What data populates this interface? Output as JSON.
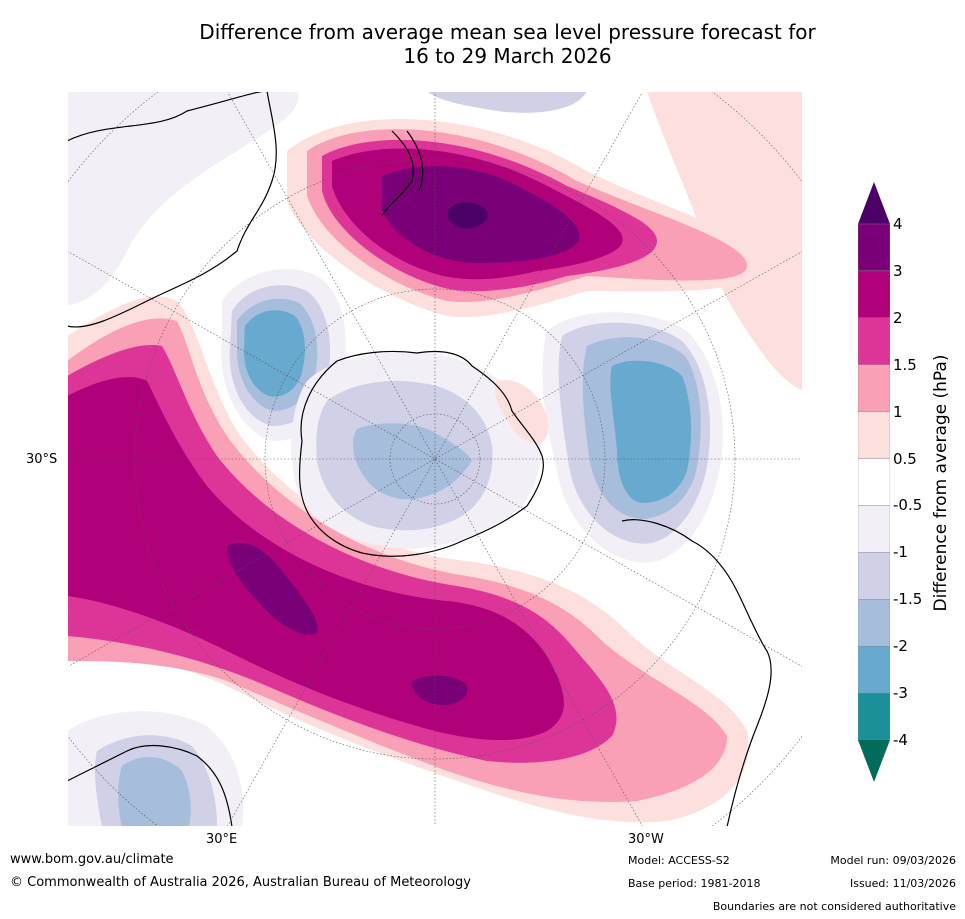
{
  "title_line1": "Difference from average mean sea level pressure forecast for",
  "title_line2": "16 to 29 March 2026",
  "axis_labels": {
    "lat": "30°S",
    "lon_east": "30°E",
    "lon_west": "30°W"
  },
  "colorbar": {
    "title": "Difference from average (hPa)",
    "levels": [
      "4",
      "3",
      "2",
      "1.5",
      "1",
      "0.5",
      "-0.5",
      "-1",
      "-1.5",
      "-2",
      "-3",
      "-4"
    ],
    "colors": {
      "above_4": "#4b0068",
      "3_to_4": "#7a0078",
      "2_to_3": "#b0007a",
      "1.5_to_2": "#dd3597",
      "1_to_1.5": "#f99fb6",
      "0.5_to_1": "#fde0dd",
      "neutral": "#ffffff",
      "m1_to_m0.5": "#f2eff6",
      "m1.5_to_m1": "#d0d1e6",
      "m2_to_m1.5": "#a6bddb",
      "m3_to_m2": "#67a9cf",
      "m4_to_m3": "#1c9099",
      "below_m4": "#016c59"
    }
  },
  "footer": {
    "website": "www.bom.gov.au/climate",
    "copyright": "© Commonwealth of Australia 2026, Australian Bureau of Meteorology",
    "model": "Model: ACCESS-S2",
    "base_period": "Base period: 1981-2018",
    "model_run": "Model run: 09/03/2026",
    "issued": "Issued: 11/03/2026",
    "disclaimer": "Boundaries are not considered authoritative"
  }
}
